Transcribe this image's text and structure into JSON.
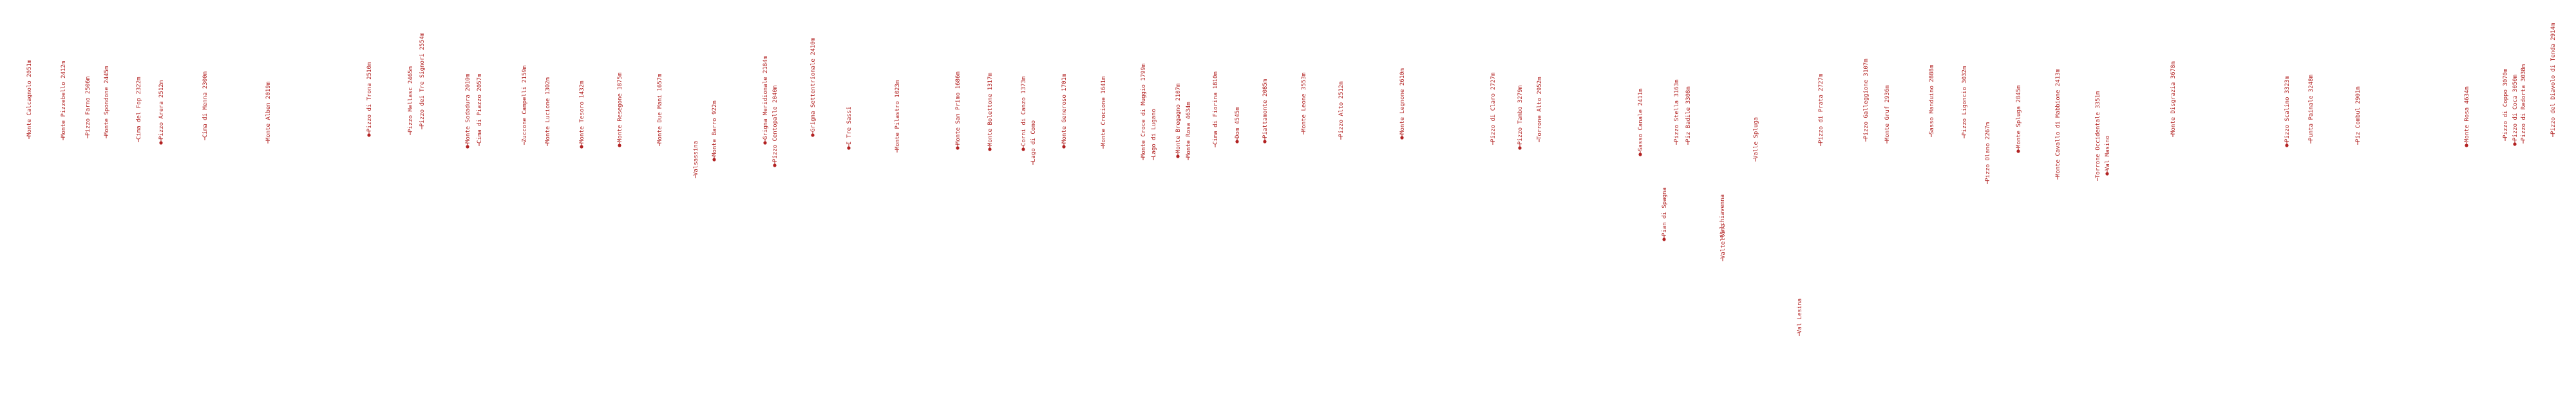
{
  "colors": {
    "marker": "#b22222",
    "line": "#b22222",
    "background": "#ffffff"
  },
  "peaks": [
    {
      "label": "Monte Calcagnolo 2051m",
      "marker": false
    },
    {
      "label": "Monte Pizzebello 2412m",
      "marker": false
    },
    {
      "label": "Pizzo Farno 2506m",
      "marker": false
    },
    {
      "label": "Monte Spondone 2445m",
      "marker": false
    },
    {
      "label": "Cima del Fop 2322m",
      "marker": false
    },
    {
      "label": "Pizzo Arera 2512m",
      "marker": true
    },
    {
      "label": "Cima di Menna 2300m",
      "marker": false
    },
    {
      "label": "Monte Alben 2019m",
      "marker": false
    },
    {
      "label": "Pizzo di Trona 2510m",
      "marker": true
    },
    {
      "label": "Pizzo Mellasc 2465m",
      "marker": false
    },
    {
      "label": "Pizzo dei Tre Signori 2554m",
      "marker": false
    },
    {
      "label": "Monte Sodadura 2010m",
      "marker": true
    },
    {
      "label": "Cima di Piazzo 2057m",
      "marker": false
    },
    {
      "label": "Zuccone Campelli 2159m",
      "marker": false
    },
    {
      "label": "Monte Lucione 1302m",
      "marker": false
    },
    {
      "label": "Monte Tesoro 1432m",
      "marker": true
    },
    {
      "label": "Monte Resegone 1875m",
      "marker": true
    },
    {
      "label": "Monte Due Mani 1657m",
      "marker": false
    },
    {
      "label": "Valsassina",
      "marker": false
    },
    {
      "label": "Monte Barro 922m",
      "marker": true
    },
    {
      "label": "Grigna Meridionale 2184m",
      "marker": true
    },
    {
      "label": "Pizzo Centopalle 2040m",
      "marker": true
    },
    {
      "label": "Grigna Settentrionale 2410m",
      "marker": true
    },
    {
      "label": "I Tre Sassi",
      "marker": true
    },
    {
      "label": "Monte Pilastro 1023m",
      "marker": false
    },
    {
      "label": "Monte San Primo 1686m",
      "marker": true
    },
    {
      "label": "Monte Bolettone 1317m",
      "marker": true
    },
    {
      "label": "Corni di Canzo 1373m",
      "marker": true
    },
    {
      "label": "Lago di Como",
      "marker": false
    },
    {
      "label": "Monte Generoso 1701m",
      "marker": true
    },
    {
      "label": "Monte Crocione 1641m",
      "marker": false
    },
    {
      "label": "Monte Croce di Muggio 1799m",
      "marker": false
    },
    {
      "label": "Lago di Lugano",
      "marker": false
    },
    {
      "label": "Monte Bregagno 2107m",
      "marker": true
    },
    {
      "label": "Monte Rosa 4634m",
      "marker": false
    },
    {
      "label": "Cima di Fiorina 1810m",
      "marker": false
    },
    {
      "label": "Dom 4545m",
      "marker": true
    },
    {
      "label": "Piattamonte 2085m",
      "marker": true
    },
    {
      "label": "Monte Leone 3553m",
      "marker": false
    },
    {
      "label": "Pizzo Alto 2512m",
      "marker": false
    },
    {
      "label": "Monte Legnone 2610m",
      "marker": true
    },
    {
      "label": "Pizzo di Claro 2727m",
      "marker": false
    },
    {
      "label": "Pizzo Tambo 3279m",
      "marker": true
    },
    {
      "label": "Torrone Alto 2952m",
      "marker": false
    },
    {
      "label": "Sasso Canale 2411m",
      "marker": true
    },
    {
      "label": "Pian di Spagna",
      "marker": true
    },
    {
      "label": "Pizzo Stella 3163m",
      "marker": false
    },
    {
      "label": "Piz Badile 3308m",
      "marker": false
    },
    {
      "label": "Valchiavenna",
      "marker": false
    },
    {
      "label": "Valle Spluga",
      "marker": false
    },
    {
      "label": "Valtellina",
      "marker": false
    },
    {
      "label": "Val Lesina",
      "marker": false
    },
    {
      "label": "Pizzo di Prata 2727m",
      "marker": false
    },
    {
      "label": "Pizzo Galleggione 3107m",
      "marker": false
    },
    {
      "label": "Monte Gruf 2936m",
      "marker": false
    },
    {
      "label": "Sasso Manduino 2888m",
      "marker": false
    },
    {
      "label": "Pizzo Ligoncio 3032m",
      "marker": false
    },
    {
      "label": "Pizzo Olano 2267m",
      "marker": false
    },
    {
      "label": "Monte Spluga 2845m",
      "marker": true
    },
    {
      "label": "Monte Disgrazia 3678m",
      "marker": false
    },
    {
      "label": "Monte Cavallo di Mabbione 2413m",
      "marker": false
    },
    {
      "label": "Torrone Occidentale 3351m",
      "marker": false
    },
    {
      "label": "Val Masino",
      "marker": true
    },
    {
      "label": "Pizzo Scalino 3323m",
      "marker": true
    },
    {
      "label": "Punta Painale 3248m",
      "marker": false
    },
    {
      "label": "Piz Combul 2901m",
      "marker": false
    },
    {
      "label": "Monte Rosa 4634m",
      "marker": true
    },
    {
      "label": "Pizzo di Coppo 3070m",
      "marker": false
    },
    {
      "label": "Pizzo di Coca 3050m",
      "marker": true
    },
    {
      "label": "Pizzo di Redorta 3038m",
      "marker": false
    },
    {
      "label": "Pizzo del Diavolo di Tenda 2914m",
      "marker": false
    }
  ]
}
